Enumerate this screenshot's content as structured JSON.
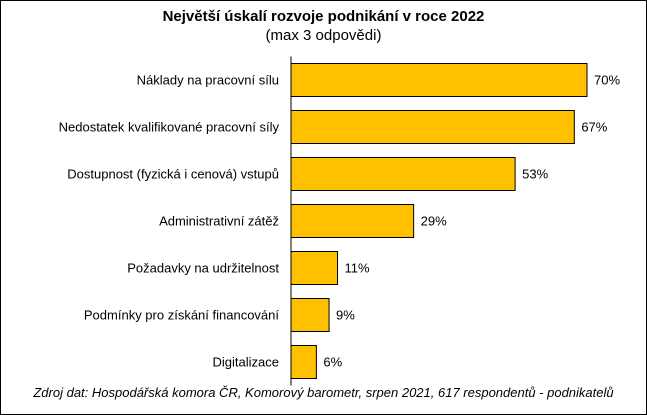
{
  "chart_data": {
    "type": "bar",
    "orientation": "horizontal",
    "title": "Největší úskalí rozvoje podnikání v roce 2022",
    "subtitle": "(max 3 odpovědi)",
    "categories": [
      "Náklady na pracovní sílu",
      "Nedostatek kvalifikované pracovní síly",
      "Dostupnost (fyzická i cenová) vstupů",
      "Administrativní zátěž",
      "Požadavky na udržitelnost",
      "Podmínky pro získání financování",
      "Digitalizace"
    ],
    "values": [
      70,
      67,
      53,
      29,
      11,
      9,
      6
    ],
    "value_labels": [
      "70%",
      "67%",
      "53%",
      "29%",
      "11%",
      "9%",
      "6%"
    ],
    "unit": "%",
    "xlim": [
      0,
      70
    ],
    "grid": false,
    "legend": "none",
    "bar_color": "#FFC000",
    "bar_edge_color": "#000000",
    "source": "Zdroj dat: Hospodářská komora ČR, Komorový barometr, srpen 2021, 617 respondentů - podnikatelů"
  }
}
